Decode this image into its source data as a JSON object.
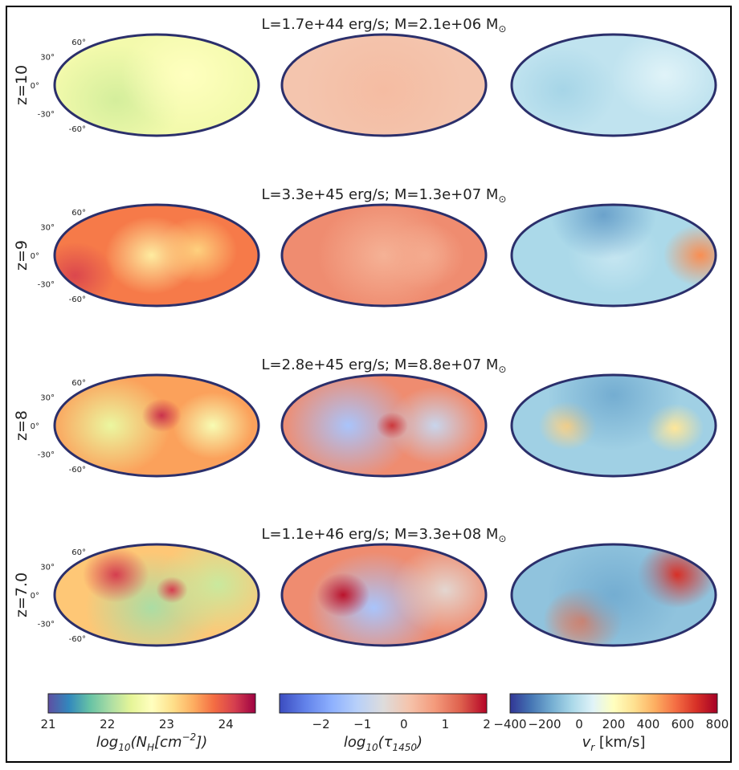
{
  "chart_data": {
    "type": "heatmap",
    "projection": "mollweide",
    "latitude_ticks": [
      "60°",
      "30°",
      "0°",
      "-30°",
      "-60°"
    ],
    "rows": [
      {
        "z_label": "z=10",
        "title": "L=1.7e+44 erg/s; M=2.1e+06 M",
        "title_subscript": "⊙",
        "nh_level": 0.45,
        "tau_level": 0.62,
        "vr_level": 0.34
      },
      {
        "z_label": "z=9",
        "title": "L=3.3e+45 erg/s; M=1.3e+07 M",
        "title_subscript": "⊙",
        "nh_level": 0.78,
        "tau_level": 0.78,
        "vr_level": 0.3
      },
      {
        "z_label": "z=8",
        "title": "L=2.8e+45 erg/s; M=8.8e+07 M",
        "title_subscript": "⊙",
        "nh_level": 0.72,
        "tau_level": 0.78,
        "vr_level": 0.28
      },
      {
        "z_label": "z=7.0",
        "title": "L=1.1e+46 erg/s; M=3.3e+08 M",
        "title_subscript": "⊙",
        "nh_level": 0.65,
        "tau_level": 0.78,
        "vr_level": 0.25
      }
    ],
    "colorbars": [
      {
        "label": "log10(NH[cm−2])",
        "label_main": "log",
        "label_sub": "10",
        "label_rest": "(N",
        "label_sub2": "H",
        "label_rest2": "[cm",
        "label_sup": "−2",
        "label_end": "])",
        "range": [
          21,
          24.5
        ],
        "ticks": [
          21,
          22,
          23,
          24
        ],
        "tick_labels": [
          "21",
          "22",
          "23",
          "24"
        ],
        "colormap": "Spectral_r"
      },
      {
        "label": "log10(τ1450)",
        "label_main": "log",
        "label_sub": "10",
        "label_rest": "(τ",
        "label_sub2": "1450",
        "label_end": ")",
        "range": [
          -3,
          2
        ],
        "ticks": [
          -2,
          -1,
          0,
          1,
          2
        ],
        "tick_labels": [
          "−2",
          "−1",
          "0",
          "1",
          "2"
        ],
        "colormap": "coolwarm"
      },
      {
        "label": "vr [km/s]",
        "label_main": "v",
        "label_sub": "r",
        "label_end": " [km/s]",
        "range": [
          -400,
          800
        ],
        "ticks": [
          -400,
          -200,
          0,
          200,
          400,
          600,
          800
        ],
        "tick_labels": [
          "−400",
          "−200",
          "0",
          "200",
          "400",
          "600",
          "800"
        ],
        "colormap": "RdYlBu_r"
      }
    ]
  },
  "colors": {
    "outline": "#2b2f6b",
    "frame": "#000000"
  }
}
